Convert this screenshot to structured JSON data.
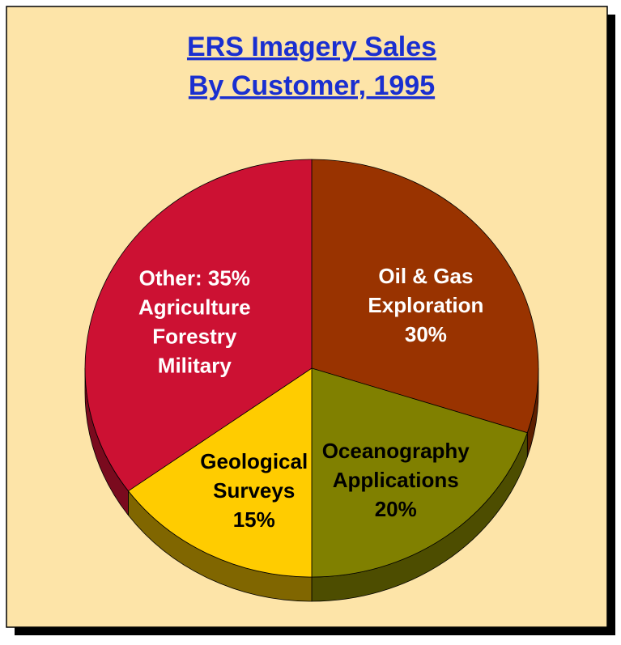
{
  "chart_data": {
    "type": "pie",
    "title": [
      "ERS Imagery Sales",
      "By Customer, 1995"
    ],
    "categories": [
      [
        "Oil & Gas",
        "Exploration"
      ],
      [
        "Oceanography",
        "Applications"
      ],
      [
        "Geological",
        "Surveys"
      ],
      [
        "Other:",
        "Agriculture",
        "Forestry",
        "Military"
      ]
    ],
    "values": [
      30,
      20,
      15,
      35
    ],
    "value_labels": [
      "30%",
      "20%",
      "15%",
      "35%"
    ],
    "colors": [
      "#993300",
      "#808000",
      "#ffcc00",
      "#cc1133"
    ],
    "side_colors": [
      "#5e1f00",
      "#4d4d00",
      "#806600",
      "#7a0a1e"
    ],
    "label_colors": [
      "#ffffff",
      "#000000",
      "#000000",
      "#ffffff"
    ],
    "title_color": "#1a2fd0",
    "background": "#fde4a8"
  }
}
